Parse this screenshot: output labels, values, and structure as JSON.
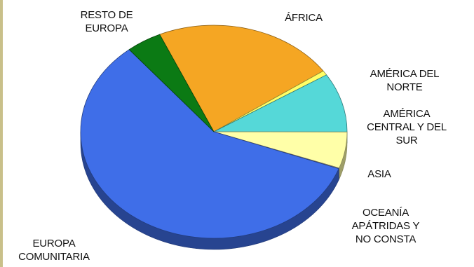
{
  "chart_data": {
    "type": "pie",
    "title": "",
    "start_angle_deg": -114,
    "slices": [
      {
        "name": "ÁFRICA",
        "lines": [
          "ÁFRICA"
        ],
        "value": 22.0,
        "color": "#f5a623"
      },
      {
        "name": "AMÉRICA DEL NORTE",
        "lines": [
          "AMÉRICA DEL",
          "NORTE"
        ],
        "value": 0.7,
        "color": "#ffff66"
      },
      {
        "name": "AMÉRICA CENTRAL Y DEL SUR",
        "lines": [
          "AMÉRICA",
          "CENTRAL Y DEL",
          "SUR"
        ],
        "value": 9.0,
        "color": "#55d8d8"
      },
      {
        "name": "ASIA",
        "lines": [
          "ASIA"
        ],
        "value": 5.5,
        "color": "#ffffa8"
      },
      {
        "name": "OCEANÍA APÁTRIDAS Y NO CONSTA",
        "lines": [
          "OCEANÍA",
          "APÁTRIDAS Y",
          "NO CONSTA"
        ],
        "value": 0.1,
        "color": "#ddd4a6"
      },
      {
        "name": "EUROPA COMUNITARIA",
        "lines": [
          "EUROPA",
          "COMUNITARIA"
        ],
        "value": 58.4,
        "color": "#3f6ee8"
      },
      {
        "name": "RESTO DE EUROPA",
        "lines": [
          "RESTO DE",
          "EUROPA"
        ],
        "value": 4.3,
        "color": "#0b7a14"
      }
    ]
  }
}
